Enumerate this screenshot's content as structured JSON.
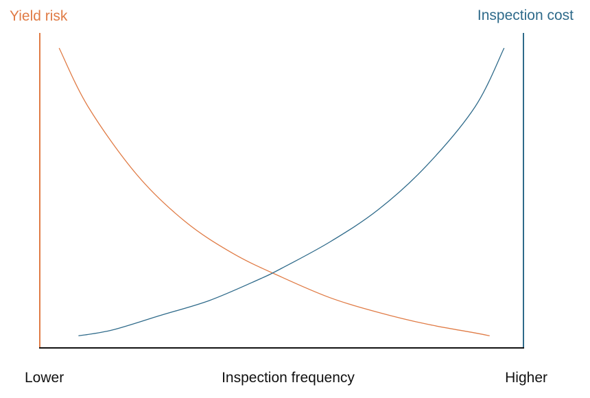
{
  "chart_data": {
    "type": "line",
    "title": "",
    "xlabel": "Inspection frequency",
    "x_tick_labels": {
      "min": "Lower",
      "max": "Higher"
    },
    "xlim": [
      0,
      1
    ],
    "grid": false,
    "legend": "none",
    "y_left": {
      "label": "Yield risk",
      "color": "#E07B45",
      "ylim": [
        0,
        1
      ]
    },
    "y_right": {
      "label": "Inspection cost",
      "color": "#2E6A8A",
      "ylim": [
        0,
        1
      ]
    },
    "series": [
      {
        "name": "Yield risk",
        "axis": "left",
        "color": "#E07B45",
        "x": [
          0.04,
          0.1,
          0.2,
          0.3,
          0.4,
          0.5,
          0.6,
          0.7,
          0.8,
          0.9,
          0.93
        ],
        "y": [
          1.0,
          0.8,
          0.57,
          0.41,
          0.3,
          0.22,
          0.15,
          0.1,
          0.06,
          0.03,
          0.02
        ]
      },
      {
        "name": "Inspection cost",
        "axis": "right",
        "color": "#2E6A8A",
        "x": [
          0.08,
          0.15,
          0.25,
          0.35,
          0.45,
          0.5,
          0.6,
          0.7,
          0.8,
          0.9,
          0.96
        ],
        "y": [
          0.02,
          0.04,
          0.09,
          0.14,
          0.21,
          0.25,
          0.34,
          0.45,
          0.6,
          0.8,
          1.0
        ]
      }
    ]
  }
}
